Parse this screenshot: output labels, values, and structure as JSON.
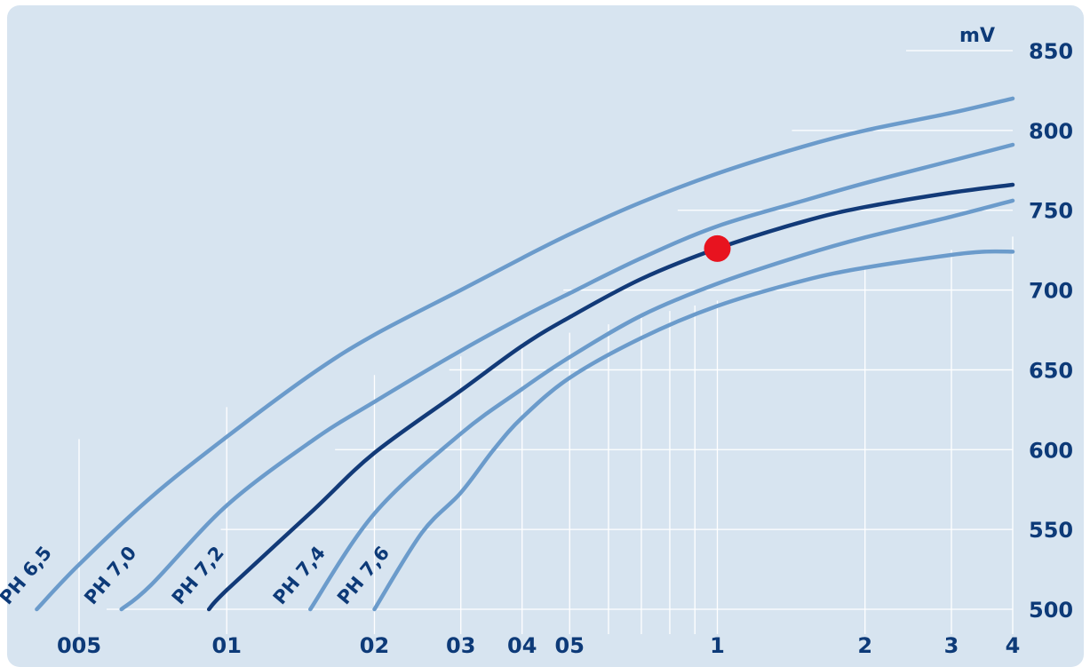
{
  "chart_data": {
    "type": "line",
    "x_scale": "log",
    "ylabel": "mV",
    "ylim": [
      500,
      850
    ],
    "xlim": [
      0.035,
      4
    ],
    "x_ticks": [
      {
        "value": 0.05,
        "label": "005"
      },
      {
        "value": 0.1,
        "label": "01"
      },
      {
        "value": 0.2,
        "label": "02"
      },
      {
        "value": 0.3,
        "label": "03"
      },
      {
        "value": 0.4,
        "label": "04"
      },
      {
        "value": 0.5,
        "label": "05"
      },
      {
        "value": 1,
        "label": "1"
      },
      {
        "value": 2,
        "label": "2"
      },
      {
        "value": 3,
        "label": "3"
      },
      {
        "value": 4,
        "label": "4"
      }
    ],
    "y_ticks": [
      500,
      550,
      600,
      650,
      700,
      750,
      800,
      850
    ],
    "grid": true,
    "series": [
      {
        "name": "PH 6,5",
        "highlight": false,
        "x": [
          0.041,
          0.05,
          0.07,
          0.1,
          0.15,
          0.2,
          0.3,
          0.4,
          0.5,
          0.7,
          1,
          1.5,
          2,
          3,
          4
        ],
        "y": [
          500,
          528,
          570,
          608,
          648,
          672,
          700,
          720,
          735,
          755,
          773,
          790,
          800,
          811,
          820
        ]
      },
      {
        "name": "PH 7,0",
        "highlight": false,
        "x": [
          0.061,
          0.07,
          0.1,
          0.15,
          0.2,
          0.3,
          0.4,
          0.5,
          0.7,
          1,
          1.5,
          2,
          3,
          4
        ],
        "y": [
          500,
          515,
          565,
          606,
          630,
          662,
          683,
          698,
          720,
          740,
          756,
          767,
          781,
          791
        ]
      },
      {
        "name": "PH 7,2",
        "highlight": true,
        "x": [
          0.092,
          0.1,
          0.15,
          0.2,
          0.3,
          0.4,
          0.5,
          0.7,
          1,
          1.5,
          2,
          3,
          4
        ],
        "y": [
          500,
          512,
          562,
          598,
          637,
          665,
          683,
          707,
          726,
          743,
          752,
          761,
          766
        ]
      },
      {
        "name": "PH 7,4",
        "highlight": false,
        "x": [
          0.148,
          0.2,
          0.3,
          0.4,
          0.5,
          0.7,
          1,
          1.5,
          2,
          3,
          4
        ],
        "y": [
          500,
          560,
          610,
          638,
          658,
          684,
          704,
          722,
          733,
          746,
          756
        ]
      },
      {
        "name": "PH 7,6",
        "highlight": false,
        "x": [
          0.2,
          0.25,
          0.3,
          0.35,
          0.4,
          0.5,
          0.7,
          1,
          1.5,
          2,
          3,
          3.5,
          4
        ],
        "y": [
          500,
          548,
          573,
          600,
          620,
          645,
          670,
          690,
          706,
          714,
          722,
          724,
          724
        ]
      }
    ],
    "marker": {
      "x": 1,
      "y": 726,
      "color": "#e8131f"
    },
    "colors": {
      "background": "#d7e4f0",
      "grid": "#ffffff",
      "curve": "#6b9bcb",
      "highlight_curve": "#123a78",
      "text": "#0d3a78"
    }
  }
}
